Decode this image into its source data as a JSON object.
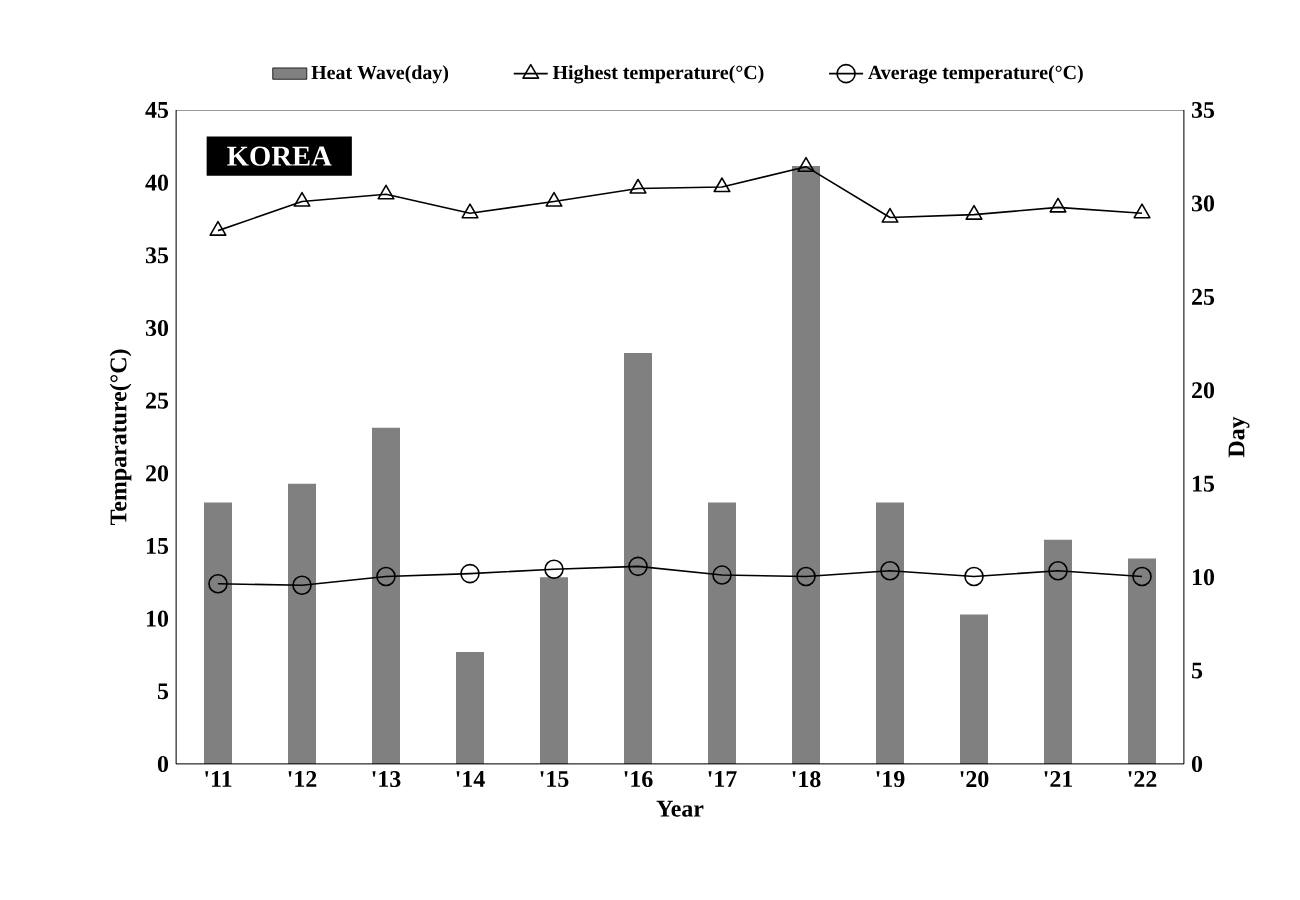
{
  "chart_data": {
    "type": "line",
    "categories": [
      "'11",
      "'12",
      "'13",
      "'14",
      "'15",
      "'16",
      "'17",
      "'18",
      "'19",
      "'20",
      "'21",
      "'22"
    ],
    "xlabel": "Year",
    "ylabel": "Temparature(°C)",
    "y2label": "Day",
    "ylim": [
      0,
      45
    ],
    "yticks": [
      0,
      5,
      10,
      15,
      20,
      25,
      30,
      35,
      40,
      45
    ],
    "y2lim": [
      0,
      35
    ],
    "y2ticks": [
      0,
      5,
      10,
      15,
      20,
      25,
      30,
      35
    ],
    "series": [
      {
        "name": "Heat Wave(day)",
        "type": "bar",
        "axis": "y2",
        "color": "#808080",
        "values": [
          14,
          15,
          18,
          6,
          10,
          22,
          14,
          32,
          14,
          8,
          12,
          11
        ]
      },
      {
        "name": "Highest temperature(°C)",
        "color": "#000000",
        "marker": "triangle",
        "values": [
          36.7,
          38.7,
          39.2,
          37.9,
          38.7,
          39.6,
          39.7,
          41.1,
          37.6,
          37.8,
          38.3,
          37.9
        ]
      },
      {
        "name": "Average temperature(°C)",
        "color": "#000000",
        "marker": "circle",
        "values": [
          12.4,
          12.3,
          12.9,
          13.1,
          13.4,
          13.6,
          13.0,
          12.9,
          13.3,
          12.9,
          13.3,
          12.9
        ]
      }
    ],
    "annotations": [
      "KOREA"
    ],
    "legend": "top",
    "grid": false
  }
}
